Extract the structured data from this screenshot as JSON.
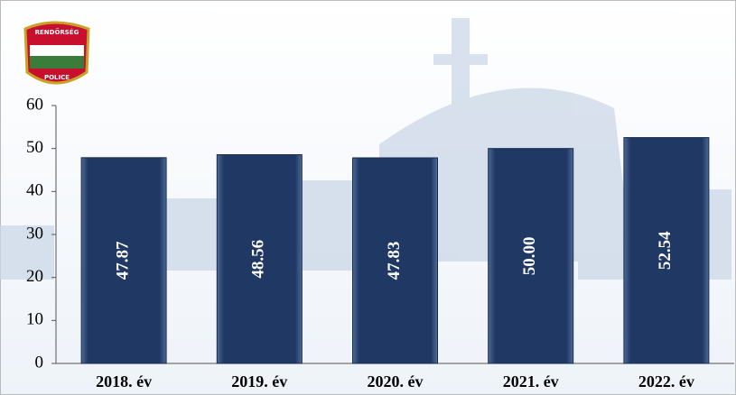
{
  "logo": {
    "top": "RENDŐRSÉG",
    "bottom": "POLICE"
  },
  "chart_data": {
    "type": "bar",
    "categories": [
      "2018. év",
      "2019. év",
      "2020. év",
      "2021. év",
      "2022. év"
    ],
    "values": [
      47.87,
      48.56,
      47.83,
      50,
      52.54
    ],
    "value_labels": [
      "47.87",
      "48.56",
      "47.83",
      "50.00",
      "52.54"
    ],
    "color": "#1f3864",
    "ylim": [
      0,
      60
    ],
    "yticks": [
      0,
      10,
      20,
      30,
      40,
      50,
      60
    ],
    "grid": false
  }
}
